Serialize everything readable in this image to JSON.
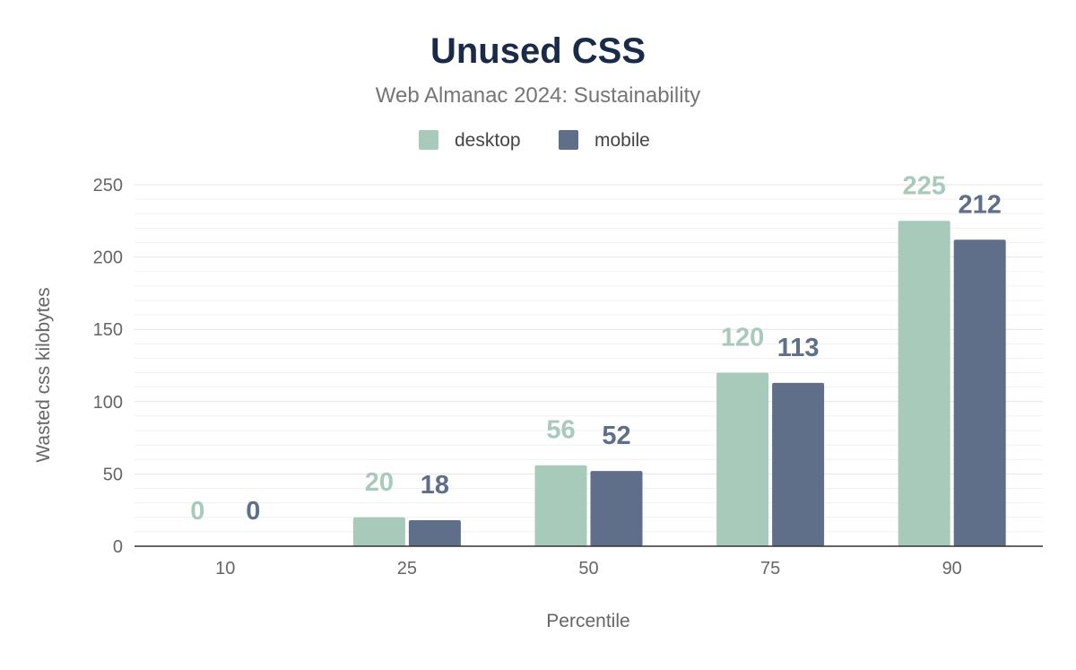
{
  "chart_data": {
    "type": "bar",
    "title": "Unused CSS",
    "subtitle": "Web Almanac 2024: Sustainability",
    "xlabel": "Percentile",
    "ylabel": "Wasted css kilobytes",
    "categories": [
      "10",
      "25",
      "50",
      "75",
      "90"
    ],
    "series": [
      {
        "name": "desktop",
        "color": "#a8cabb",
        "values": [
          0,
          20,
          56,
          120,
          225
        ]
      },
      {
        "name": "mobile",
        "color": "#5f6f8a",
        "values": [
          0,
          18,
          52,
          113,
          212
        ]
      }
    ],
    "ylim": [
      0,
      250
    ],
    "yticks": [
      "0",
      "50",
      "100",
      "150",
      "200",
      "250"
    ],
    "grid": true,
    "legend_position": "top-center"
  }
}
